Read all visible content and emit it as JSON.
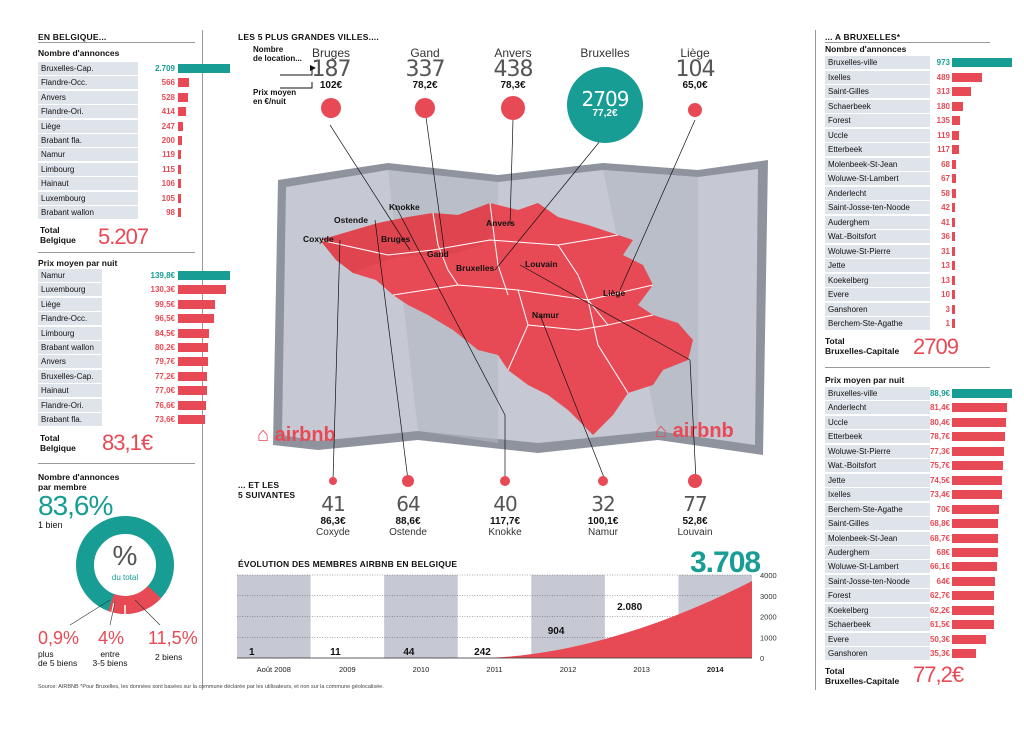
{
  "left": {
    "header": "EN BELGIQUE...",
    "count_title": "Nombre d'annonces",
    "counts": [
      {
        "label": "Bruxelles-Cap.",
        "value": "2.709",
        "num": 2709,
        "hl": true
      },
      {
        "label": "Flandre-Occ.",
        "value": "566",
        "num": 566
      },
      {
        "label": "Anvers",
        "value": "528",
        "num": 528
      },
      {
        "label": "Flandre-Ori.",
        "value": "414",
        "num": 414
      },
      {
        "label": "Liège",
        "value": "247",
        "num": 247
      },
      {
        "label": "Brabant fla.",
        "value": "200",
        "num": 200
      },
      {
        "label": "Namur",
        "value": "119",
        "num": 119
      },
      {
        "label": "Limbourg",
        "value": "115",
        "num": 115
      },
      {
        "label": "Hainaut",
        "value": "106",
        "num": 106
      },
      {
        "label": "Luxembourg",
        "value": "105",
        "num": 105
      },
      {
        "label": "Brabant wallon",
        "value": "98",
        "num": 98
      }
    ],
    "count_total_label1": "Total",
    "count_total_label2": "Belgique",
    "count_total": "5.207",
    "price_title": "Prix moyen par nuit",
    "prices": [
      {
        "label": "Namur",
        "value": "139,8€",
        "num": 139.8,
        "hl": true
      },
      {
        "label": "Luxembourg",
        "value": "130,3€",
        "num": 130.3
      },
      {
        "label": "Liège",
        "value": "99,5€",
        "num": 99.5
      },
      {
        "label": "Flandre-Occ.",
        "value": "96,5€",
        "num": 96.5
      },
      {
        "label": "Limbourg",
        "value": "84,5€",
        "num": 84.5
      },
      {
        "label": "Brabant wallon",
        "value": "80,2€",
        "num": 80.2
      },
      {
        "label": "Anvers",
        "value": "79,7€",
        "num": 79.7
      },
      {
        "label": "Bruxelles-Cap.",
        "value": "77,2€",
        "num": 77.2
      },
      {
        "label": "Hainaut",
        "value": "77,0€",
        "num": 77.0
      },
      {
        "label": "Flandre-Ori.",
        "value": "76,6€",
        "num": 76.6
      },
      {
        "label": "Brabant fla.",
        "value": "73,6€",
        "num": 73.6
      }
    ],
    "price_total_label1": "Total",
    "price_total_label2": "Belgique",
    "price_total": "83,1€",
    "member_title1": "Nombre d'annonces",
    "member_title2": "par membre",
    "member_main": "83,6%",
    "member_main_sub": "1 bien",
    "donut_pct": "%",
    "donut_sub": "du total",
    "member_a": "0,9%",
    "member_a_sub1": "plus",
    "member_a_sub2": "de 5 biens",
    "member_b": "4%",
    "member_b_sub1": "entre",
    "member_b_sub2": "3-5 biens",
    "member_c": "11,5%",
    "member_c_sub1": "2 biens"
  },
  "center": {
    "header": "LES 5 PLUS GRANDES VILLES....",
    "legend_count1": "Nombre",
    "legend_count2": "de location...",
    "legend_price1": "Prix moyen",
    "legend_price2": "en €/nuit",
    "top_cities": [
      {
        "name": "Bruges",
        "count": "187",
        "price": "102€"
      },
      {
        "name": "Gand",
        "count": "337",
        "price": "78,2€"
      },
      {
        "name": "Anvers",
        "count": "438",
        "price": "78,3€"
      },
      {
        "name": "Bruxelles",
        "count": "2709",
        "price": "77,2€"
      },
      {
        "name": "Liège",
        "count": "104",
        "price": "65,0€"
      }
    ],
    "next_header1": "... ET LES",
    "next_header2": "5 SUIVANTES",
    "next_cities": [
      {
        "name": "Coxyde",
        "count": "41",
        "price": "86,3€"
      },
      {
        "name": "Ostende",
        "count": "64",
        "price": "88,6€"
      },
      {
        "name": "Knokke",
        "count": "40",
        "price": "117,7€"
      },
      {
        "name": "Namur",
        "count": "32",
        "price": "100,1€"
      },
      {
        "name": "Louvain",
        "count": "77",
        "price": "52,8€"
      }
    ],
    "map_labels": {
      "knokke": "Knokke",
      "ostende": "Ostende",
      "coxyde": "Coxyde",
      "bruges": "Bruges",
      "gand": "Gand",
      "anvers": "Anvers",
      "bruxelles": "Bruxelles",
      "louvain": "Louvain",
      "liege": "Liège",
      "namur": "Namur"
    },
    "logo_text": "airbnb"
  },
  "chart_data": {
    "type": "area",
    "title": "ÉVOLUTION DES MEMBRES AIRBNB EN BELGIQUE",
    "categories": [
      "Août 2008",
      "2009",
      "2010",
      "2011",
      "2012",
      "2013",
      "2014"
    ],
    "labels": [
      "1",
      "11",
      "44",
      "242",
      "904",
      "2.080"
    ],
    "final_value": "3.708",
    "yticks": [
      "4000",
      "3000",
      "2000",
      "1000",
      "0"
    ],
    "ylim": [
      0,
      4000
    ],
    "x": [
      0,
      1,
      2,
      3,
      4,
      5,
      6
    ],
    "values": [
      1,
      11,
      44,
      242,
      904,
      2080,
      3708
    ],
    "grid": true
  },
  "right": {
    "header": "... A BRUXELLES*",
    "count_title": "Nombre d'annonces",
    "counts": [
      {
        "label": "Bruxelles-ville",
        "value": "973",
        "num": 973,
        "hl": true
      },
      {
        "label": "Ixelles",
        "value": "489",
        "num": 489
      },
      {
        "label": "Saint-Gilles",
        "value": "313",
        "num": 313
      },
      {
        "label": "Schaerbeek",
        "value": "180",
        "num": 180
      },
      {
        "label": "Forest",
        "value": "135",
        "num": 135
      },
      {
        "label": "Uccle",
        "value": "119",
        "num": 119
      },
      {
        "label": "Etterbeek",
        "value": "117",
        "num": 117
      },
      {
        "label": "Molenbeek-St-Jean",
        "value": "68",
        "num": 68
      },
      {
        "label": "Woluwe-St-Lambert",
        "value": "67",
        "num": 67
      },
      {
        "label": "Anderlecht",
        "value": "58",
        "num": 58
      },
      {
        "label": "Saint-Josse-ten-Noode",
        "value": "42",
        "num": 42
      },
      {
        "label": "Auderghem",
        "value": "41",
        "num": 41
      },
      {
        "label": "Wat.-Boitsfort",
        "value": "36",
        "num": 36
      },
      {
        "label": "Woluwe-St-Pierre",
        "value": "31",
        "num": 31
      },
      {
        "label": "Jette",
        "value": "13",
        "num": 13
      },
      {
        "label": "Koekelberg",
        "value": "13",
        "num": 13
      },
      {
        "label": "Evere",
        "value": "10",
        "num": 10
      },
      {
        "label": "Ganshoren",
        "value": "3",
        "num": 3
      },
      {
        "label": "Berchem-Ste-Agathe",
        "value": "1",
        "num": 1
      }
    ],
    "count_total_label1": "Total",
    "count_total_label2": "Bruxelles-Capitale",
    "count_total": "2709",
    "price_title": "Prix moyen par nuit",
    "prices": [
      {
        "label": "Bruxelles-ville",
        "value": "88,9€",
        "num": 88.9,
        "hl": true
      },
      {
        "label": "Anderlecht",
        "value": "81,4€",
        "num": 81.4
      },
      {
        "label": "Uccle",
        "value": "80,4€",
        "num": 80.4
      },
      {
        "label": "Etterbeek",
        "value": "78,7€",
        "num": 78.7
      },
      {
        "label": "Woluwe-St-Pierre",
        "value": "77,3€",
        "num": 77.3
      },
      {
        "label": "Wat.-Boitsfort",
        "value": "75,7€",
        "num": 75.7
      },
      {
        "label": "Jette",
        "value": "74,5€",
        "num": 74.5
      },
      {
        "label": "Ixelles",
        "value": "73,4€",
        "num": 73.4
      },
      {
        "label": "Berchem-Ste-Agathe",
        "value": "70€",
        "num": 70
      },
      {
        "label": "Saint-Gilles",
        "value": "68,8€",
        "num": 68.8
      },
      {
        "label": "Molenbeek-St-Jean",
        "value": "68,7€",
        "num": 68.7
      },
      {
        "label": "Auderghem",
        "value": "68€",
        "num": 68
      },
      {
        "label": "Woluwe-St-Lambert",
        "value": "66,1€",
        "num": 66.1
      },
      {
        "label": "Saint-Josse-ten-Noode",
        "value": "64€",
        "num": 64
      },
      {
        "label": "Forest",
        "value": "62,7€",
        "num": 62.7
      },
      {
        "label": "Koekelberg",
        "value": "62,2€",
        "num": 62.2
      },
      {
        "label": "Schaerbeek",
        "value": "61,5€",
        "num": 61.5
      },
      {
        "label": "Evere",
        "value": "50,3€",
        "num": 50.3
      },
      {
        "label": "Ganshoren",
        "value": "35,3€",
        "num": 35.3
      }
    ],
    "price_total_label1": "Total",
    "price_total_label2": "Bruxelles-Capitale",
    "price_total": "77,2€"
  },
  "footer": "Source: AIRBNB *Pour Bruxelles, les données sont basées sur la commune déclarée par les utilisateurs, et non sur la commune géolocalisée.",
  "colors": {
    "accent": "#e84a55",
    "teal": "#179d93",
    "label_bg": "#dfe3ea",
    "map_bg": "#c6c9d3"
  }
}
